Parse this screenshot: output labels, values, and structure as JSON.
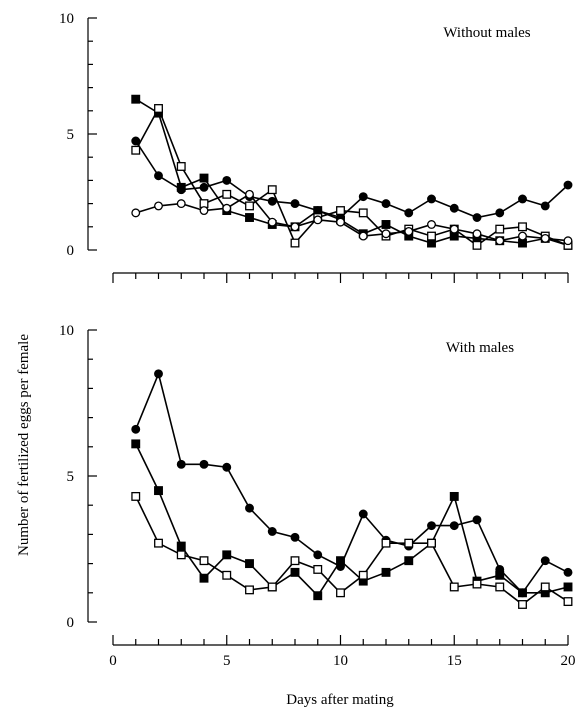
{
  "chart_data": {
    "type": "line",
    "ylabel": "Number of fertilized eggs per female",
    "xlabel": "Days after mating",
    "xlim": [
      0,
      20
    ],
    "x_ticks": [
      "0",
      "5",
      "10",
      "15",
      "20"
    ],
    "panels": [
      {
        "title": "Without males",
        "ylim": [
          0,
          10
        ],
        "y_ticks": [
          "0",
          "5",
          "10"
        ],
        "series": [
          {
            "marker": "filled-circle",
            "x": [
              1,
              2,
              3,
              4,
              5,
              6,
              7,
              8,
              9,
              10,
              11,
              12,
              13,
              14,
              15,
              16,
              17,
              18,
              19,
              20
            ],
            "y": [
              4.7,
              3.2,
              2.6,
              2.7,
              3.0,
              2.3,
              2.1,
              2.0,
              1.7,
              1.4,
              2.3,
              2.0,
              1.6,
              2.2,
              1.8,
              1.4,
              1.6,
              2.2,
              1.9,
              2.8
            ]
          },
          {
            "marker": "filled-square",
            "x": [
              1,
              2,
              3,
              4,
              5,
              6,
              7,
              8,
              9,
              10,
              11,
              12,
              13,
              14,
              15,
              16,
              17,
              18,
              19,
              20
            ],
            "y": [
              6.5,
              5.9,
              2.7,
              3.1,
              1.7,
              1.4,
              1.1,
              1.0,
              1.7,
              1.3,
              0.7,
              1.1,
              0.6,
              0.3,
              0.6,
              0.5,
              0.4,
              0.3,
              0.5,
              0.2
            ]
          },
          {
            "marker": "open-square",
            "x": [
              1,
              2,
              3,
              4,
              5,
              6,
              7,
              8,
              9,
              10,
              11,
              12,
              13,
              14,
              15,
              16,
              17,
              18,
              19,
              20
            ],
            "y": [
              4.3,
              6.1,
              3.6,
              2.0,
              2.4,
              1.9,
              2.6,
              0.3,
              1.4,
              1.7,
              1.6,
              0.6,
              0.9,
              0.6,
              0.9,
              0.2,
              0.9,
              1.0,
              0.6,
              0.2
            ]
          },
          {
            "marker": "open-circle",
            "x": [
              1,
              2,
              3,
              4,
              5,
              6,
              7,
              8,
              9,
              10,
              11,
              12,
              13,
              14,
              15,
              16,
              17,
              18,
              19,
              20
            ],
            "y": [
              1.6,
              1.9,
              2.0,
              1.7,
              1.8,
              2.4,
              1.2,
              1.0,
              1.3,
              1.2,
              0.6,
              0.7,
              0.8,
              1.1,
              0.9,
              0.7,
              0.4,
              0.6,
              0.5,
              0.4
            ]
          }
        ]
      },
      {
        "title": "With males",
        "ylim": [
          0,
          10
        ],
        "y_ticks": [
          "0",
          "5",
          "10"
        ],
        "series": [
          {
            "marker": "filled-circle",
            "x": [
              1,
              2,
              3,
              4,
              5,
              6,
              7,
              8,
              9,
              10,
              11,
              12,
              13,
              14,
              15,
              16,
              17,
              18,
              19,
              20
            ],
            "y": [
              6.6,
              8.5,
              5.4,
              5.4,
              5.3,
              3.9,
              3.1,
              2.9,
              2.3,
              1.9,
              3.7,
              2.8,
              2.6,
              3.3,
              3.3,
              3.5,
              1.8,
              1.0,
              2.1,
              1.7
            ]
          },
          {
            "marker": "filled-square",
            "x": [
              1,
              2,
              3,
              4,
              5,
              6,
              7,
              8,
              9,
              10,
              11,
              12,
              13,
              14,
              15,
              16,
              17,
              18,
              19,
              20
            ],
            "y": [
              6.1,
              4.5,
              2.6,
              1.5,
              2.3,
              2.0,
              1.2,
              1.7,
              0.9,
              2.1,
              1.4,
              1.7,
              2.1,
              2.7,
              4.3,
              1.4,
              1.6,
              1.0,
              1.0,
              1.2
            ]
          },
          {
            "marker": "open-square",
            "x": [
              1,
              2,
              3,
              4,
              5,
              6,
              7,
              8,
              9,
              10,
              11,
              12,
              13,
              14,
              15,
              16,
              17,
              18,
              19,
              20
            ],
            "y": [
              4.3,
              2.7,
              2.3,
              2.1,
              1.6,
              1.1,
              1.2,
              2.1,
              1.8,
              1.0,
              1.6,
              2.7,
              2.7,
              2.7,
              1.2,
              1.3,
              1.2,
              0.6,
              1.2,
              0.7
            ]
          }
        ]
      }
    ]
  }
}
